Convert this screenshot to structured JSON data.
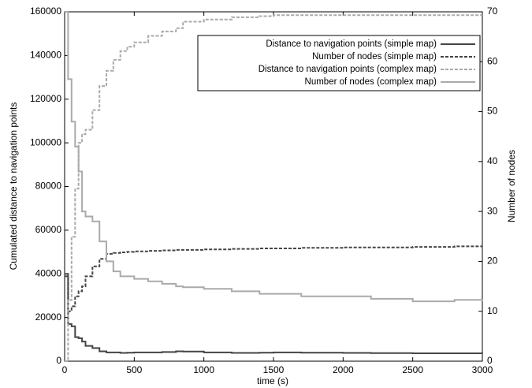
{
  "chart_data": {
    "type": "line",
    "xlabel": "time (s)",
    "ylabel": "Cumulated distance to navigation points",
    "y2label": "Number of nodes",
    "x": [
      0,
      25,
      50,
      75,
      100,
      125,
      150,
      200,
      250,
      300,
      350,
      400,
      450,
      500,
      600,
      700,
      800,
      850,
      1000,
      1200,
      1400,
      1500,
      1700,
      2000,
      2200,
      2500,
      2800,
      3000
    ],
    "xlim": [
      0,
      3000
    ],
    "xticks": [
      0,
      500,
      1000,
      1500,
      2000,
      2500,
      3000
    ],
    "ylim": [
      0,
      160000
    ],
    "yticks": [
      0,
      20000,
      40000,
      60000,
      80000,
      100000,
      120000,
      140000,
      160000
    ],
    "y2lim": [
      0,
      70
    ],
    "y2ticks": [
      0,
      10,
      20,
      30,
      40,
      50,
      60,
      70
    ],
    "legend": "top-right",
    "series": [
      {
        "name": "Distance to navigation points (simple map)",
        "color": "#444444",
        "dashed": false,
        "values": [
          40000,
          17000,
          16000,
          11000,
          10500,
          9000,
          7000,
          6000,
          4500,
          4000,
          4000,
          3800,
          3900,
          4000,
          4000,
          4200,
          4500,
          4400,
          4000,
          3800,
          3900,
          4000,
          3900,
          3800,
          3700,
          3600,
          3600,
          3500
        ]
      },
      {
        "name": "Number of nodes (simple map)",
        "color": "#444444",
        "dashed": true,
        "axis": "y2",
        "values": [
          17,
          10,
          11,
          13,
          14,
          15,
          17,
          19,
          20.5,
          21.5,
          21.7,
          21.8,
          21.9,
          22,
          22.1,
          22.2,
          22.3,
          22.3,
          22.4,
          22.5,
          22.6,
          22.6,
          22.7,
          22.8,
          22.8,
          22.9,
          23,
          23
        ]
      },
      {
        "name": "Distance to navigation points (complex map)",
        "color": "#aaaaaa",
        "dashed": true,
        "values": [
          0,
          28000,
          57000,
          79000,
          100000,
          104000,
          106000,
          115000,
          126000,
          133000,
          138000,
          142000,
          144000,
          146000,
          149000,
          151000,
          152500,
          155500,
          156500,
          157500,
          158000,
          158500,
          158500,
          158500,
          158500,
          158500,
          158500,
          158500
        ]
      },
      {
        "name": "Number of nodes (complex map)",
        "color": "#aaaaaa",
        "dashed": false,
        "axis": "y2",
        "values": [
          70,
          56.5,
          48,
          43,
          38,
          30,
          29,
          28,
          24,
          20,
          18,
          17,
          17,
          16.5,
          16,
          15.5,
          15,
          14.8,
          14.5,
          14,
          13.5,
          13.5,
          13,
          13,
          12.5,
          12,
          12.3,
          12
        ]
      }
    ]
  }
}
